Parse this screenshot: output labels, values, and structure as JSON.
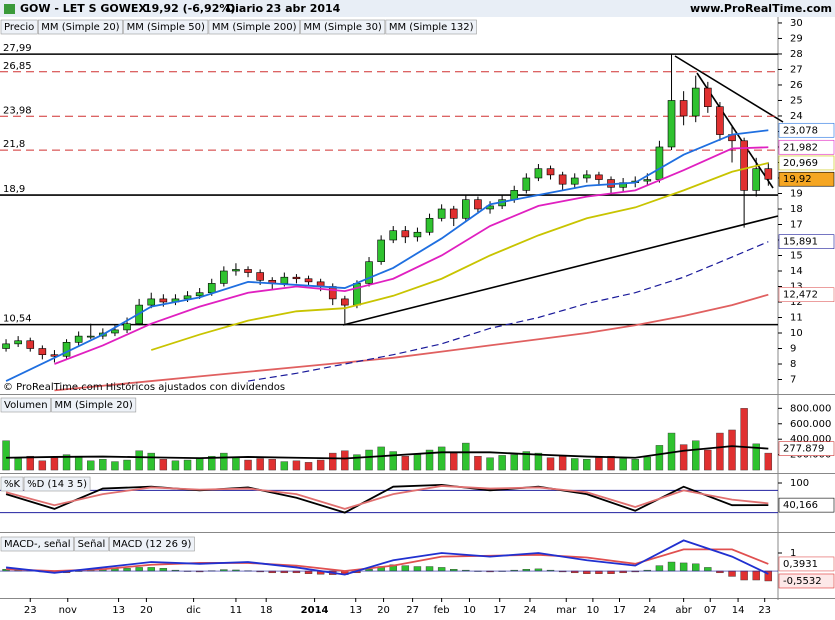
{
  "header": {
    "title": "GOW - LET S GOWEX",
    "quote": "19,92 (-6,92%)",
    "period": "Diario",
    "date": "23 abr 2014",
    "site": "www.ProRealTime.com"
  },
  "x_axis": {
    "xlim": [
      -0.5,
      63.8
    ],
    "xticks": [
      {
        "value": 2.0,
        "label": "23"
      },
      {
        "value": 5.1,
        "label": "nov"
      },
      {
        "value": 9.3,
        "label": "13"
      },
      {
        "value": 11.6,
        "label": "20"
      },
      {
        "value": 15.5,
        "label": "dic"
      },
      {
        "value": 19.0,
        "label": "11"
      },
      {
        "value": 21.5,
        "label": "18"
      },
      {
        "value": 25.5,
        "label": "2014"
      },
      {
        "value": 28.9,
        "label": "13"
      },
      {
        "value": 31.2,
        "label": "20"
      },
      {
        "value": 33.6,
        "label": "27"
      },
      {
        "value": 36.0,
        "label": "feb"
      },
      {
        "value": 38.3,
        "label": "10"
      },
      {
        "value": 40.8,
        "label": "17"
      },
      {
        "value": 43.3,
        "label": "24"
      },
      {
        "value": 46.3,
        "label": "mar"
      },
      {
        "value": 48.5,
        "label": "10"
      },
      {
        "value": 50.7,
        "label": "17"
      },
      {
        "value": 53.2,
        "label": "24"
      },
      {
        "value": 56.0,
        "label": "abr"
      },
      {
        "value": 58.2,
        "label": "07"
      },
      {
        "value": 60.5,
        "label": "14"
      },
      {
        "value": 62.7,
        "label": "23"
      }
    ]
  },
  "line_x": [
    0,
    4,
    8,
    12,
    16,
    20,
    24,
    28,
    32,
    36,
    40,
    44,
    48,
    52,
    56,
    60,
    63
  ],
  "chart_data": [
    {
      "type": "candlestick",
      "note": "© ProRealTime.com  Históricos ajustados con dividendos",
      "ylim": [
        6.13,
        30.32
      ],
      "yticks": [
        7,
        8,
        9,
        10,
        11,
        12,
        13,
        14,
        15,
        16,
        17,
        18,
        19,
        20,
        21,
        22,
        23,
        24,
        25,
        26,
        27,
        28,
        29,
        30
      ],
      "levels": [
        {
          "value": 27.99,
          "label": "27,99",
          "color": "#000000",
          "style": "solid"
        },
        {
          "value": 26.85,
          "label": "26,85",
          "color": "#d03030",
          "style": "dashed"
        },
        {
          "value": 23.98,
          "label": "23,98",
          "color": "#d03030",
          "style": "dashed"
        },
        {
          "value": 21.8,
          "label": "21,8",
          "color": "#d03030",
          "style": "dashed"
        },
        {
          "value": 18.9,
          "label": "18,9",
          "color": "#000000",
          "style": "solid"
        },
        {
          "value": 10.54,
          "label": "10,54",
          "color": "#000000",
          "style": "solid"
        }
      ],
      "ohlc": {
        "name": "Precio",
        "up_color": "#2fc22f",
        "down_color": "#e03030",
        "label_bg": "#f5a623",
        "last_label": "19,92",
        "open": [
          9.0,
          9.3,
          9.5,
          9.0,
          8.6,
          8.5,
          9.4,
          9.8,
          9.8,
          10.0,
          10.2,
          10.6,
          11.8,
          12.2,
          12.0,
          12.2,
          12.4,
          12.6,
          13.2,
          14.0,
          14.1,
          13.9,
          13.4,
          13.2,
          13.6,
          13.5,
          13.3,
          13.0,
          12.2,
          11.8,
          13.2,
          14.6,
          16.0,
          16.6,
          16.2,
          16.5,
          17.4,
          18.0,
          17.4,
          18.6,
          18.0,
          18.2,
          18.6,
          19.2,
          20.0,
          20.6,
          20.2,
          19.6,
          20.0,
          20.2,
          19.9,
          19.4,
          19.7,
          19.8,
          19.9,
          22.0,
          25.0,
          24.0,
          25.8,
          24.6,
          22.8,
          22.4,
          19.2,
          20.6
        ],
        "high": [
          9.6,
          9.8,
          9.7,
          9.2,
          8.9,
          9.6,
          10.1,
          10.6,
          10.3,
          10.5,
          11.0,
          12.2,
          12.6,
          12.5,
          12.5,
          12.7,
          12.9,
          13.5,
          14.3,
          14.5,
          14.3,
          14.1,
          13.6,
          13.9,
          13.8,
          13.7,
          13.5,
          13.2,
          12.4,
          13.4,
          14.9,
          16.3,
          16.9,
          16.9,
          16.8,
          17.7,
          18.3,
          18.2,
          18.9,
          18.8,
          18.5,
          18.9,
          19.5,
          20.3,
          20.9,
          20.8,
          20.4,
          20.3,
          20.5,
          20.4,
          20.1,
          20.0,
          20.1,
          20.3,
          22.4,
          27.99,
          25.6,
          26.6,
          26.2,
          24.9,
          23.4,
          22.6,
          21.3,
          21.0
        ],
        "low": [
          8.8,
          9.1,
          8.8,
          8.3,
          8.1,
          8.3,
          9.2,
          9.6,
          9.6,
          9.8,
          10.0,
          10.5,
          11.6,
          11.7,
          11.8,
          12.0,
          12.2,
          12.4,
          13.0,
          13.7,
          13.6,
          13.1,
          12.8,
          13.0,
          13.2,
          13.0,
          12.7,
          11.8,
          10.6,
          11.6,
          13.0,
          14.4,
          15.8,
          15.8,
          15.9,
          16.3,
          17.2,
          16.9,
          17.2,
          17.7,
          17.7,
          18.0,
          18.4,
          19.0,
          19.8,
          19.9,
          19.2,
          19.3,
          19.7,
          19.5,
          18.9,
          19.1,
          19.4,
          19.5,
          19.7,
          21.8,
          23.4,
          23.6,
          24.2,
          22.4,
          21.0,
          16.8,
          18.8,
          19.5
        ],
        "close": [
          9.3,
          9.5,
          9.0,
          8.6,
          8.5,
          9.4,
          9.8,
          9.8,
          10.0,
          10.2,
          10.6,
          11.8,
          12.2,
          12.0,
          12.2,
          12.4,
          12.6,
          13.2,
          14.0,
          14.1,
          13.9,
          13.4,
          13.2,
          13.6,
          13.5,
          13.3,
          13.0,
          12.2,
          11.8,
          13.2,
          14.6,
          16.0,
          16.6,
          16.2,
          16.5,
          17.4,
          18.0,
          17.4,
          18.6,
          18.0,
          18.2,
          18.6,
          19.2,
          20.0,
          20.6,
          20.2,
          19.6,
          20.0,
          20.2,
          19.9,
          19.4,
          19.7,
          19.8,
          19.9,
          22.0,
          25.0,
          24.0,
          25.8,
          24.6,
          22.8,
          22.4,
          19.2,
          20.6,
          19.92
        ]
      },
      "series": [
        {
          "name": "MM (Simple 20)",
          "color": "#1f6fe0",
          "last_label": "23,078",
          "values": [
            6.9,
            8.4,
            9.9,
            11.7,
            12.3,
            13.3,
            13.1,
            12.9,
            14.2,
            16.1,
            18.3,
            18.9,
            19.5,
            19.7,
            21.5,
            22.8,
            23.078
          ]
        },
        {
          "name": "MM (Simple 50)",
          "color": "#c8c400",
          "last_label": "20,969",
          "values": [
            null,
            null,
            null,
            8.9,
            9.9,
            10.8,
            11.4,
            11.6,
            12.4,
            13.5,
            15.0,
            16.3,
            17.4,
            18.1,
            19.2,
            20.4,
            20.969
          ]
        },
        {
          "name": "MM (Simple 200)",
          "color": "#e06060",
          "last_label": "12,472",
          "values": [
            null,
            6.3,
            6.6,
            6.9,
            7.2,
            7.5,
            7.8,
            8.1,
            8.4,
            8.8,
            9.2,
            9.6,
            10.0,
            10.5,
            11.1,
            11.8,
            12.472
          ]
        },
        {
          "name": "MM (Simple 30)",
          "color": "#e020c0",
          "last_label": "21,982",
          "values": [
            null,
            8.0,
            9.2,
            10.6,
            11.7,
            12.6,
            13.0,
            12.7,
            13.5,
            15.0,
            16.9,
            18.2,
            18.8,
            19.2,
            20.5,
            21.9,
            21.982
          ]
        },
        {
          "name": "MM (Simple 132)",
          "color": "#1a1a9a",
          "dashed": true,
          "last_label": "15,891",
          "values": [
            null,
            null,
            null,
            null,
            null,
            6.9,
            7.4,
            8.0,
            8.6,
            9.3,
            10.3,
            11.0,
            11.9,
            12.6,
            13.6,
            14.9,
            15.891
          ]
        }
      ]
    },
    {
      "type": "volume",
      "ylim": [
        -25000,
        960000
      ],
      "yticks": [
        {
          "value": 200000,
          "label": "200.000"
        },
        {
          "value": 400000,
          "label": "400.000"
        },
        {
          "value": 600000,
          "label": "600.000"
        },
        {
          "value": 800000,
          "label": "800.000"
        }
      ],
      "bars": {
        "name": "Volumen",
        "up_color": "#2fc22f",
        "down_color": "#e03030",
        "values": [
          380000,
          150000,
          180000,
          120000,
          160000,
          200000,
          180000,
          120000,
          140000,
          110000,
          130000,
          250000,
          220000,
          140000,
          120000,
          130000,
          150000,
          180000,
          220000,
          160000,
          130000,
          150000,
          140000,
          110000,
          120000,
          100000,
          130000,
          220000,
          250000,
          200000,
          260000,
          300000,
          240000,
          180000,
          200000,
          260000,
          300000,
          220000,
          350000,
          180000,
          160000,
          190000,
          200000,
          240000,
          220000,
          160000,
          180000,
          150000,
          140000,
          160000,
          180000,
          150000,
          140000,
          170000,
          320000,
          480000,
          330000,
          380000,
          260000,
          480000,
          520000,
          800000,
          340000,
          220000
        ]
      },
      "series": [
        {
          "name": "MM (Simple 20)",
          "color": "#000000",
          "label_color": "#d03030",
          "last_label": "277.879",
          "values": [
            160000,
            170000,
            175000,
            165000,
            155000,
            170000,
            160000,
            150000,
            190000,
            230000,
            230000,
            200000,
            175000,
            160000,
            250000,
            310000,
            277879
          ]
        }
      ]
    },
    {
      "type": "line",
      "ylim": [
        0,
        121.6
      ],
      "yticks": [
        100
      ],
      "ref_levels": [
        20,
        80
      ],
      "ref_color": "#2020a0",
      "series": [
        {
          "name": "%K",
          "color": "#000000",
          "last_label": "40,166",
          "values": [
            70,
            30,
            85,
            90,
            80,
            88,
            60,
            20,
            90,
            95,
            80,
            90,
            70,
            25,
            90,
            40,
            40.166
          ]
        },
        {
          "name": "%D (14 3 5)",
          "color": "#e07070",
          "values": [
            75,
            40,
            70,
            88,
            82,
            85,
            70,
            30,
            70,
            92,
            85,
            88,
            75,
            35,
            80,
            55,
            45
          ]
        }
      ]
    },
    {
      "type": "macd",
      "ylim": [
        -1.22,
        2.0
      ],
      "yticks": [
        1
      ],
      "bars": {
        "name": "MACD-, señal",
        "up_color": "#2fc22f",
        "down_color": "#e03030",
        "last_label": "-0,5532",
        "values": [
          0.1,
          0.1,
          0.05,
          -0.05,
          -0.1,
          -0.1,
          0.0,
          0.05,
          0.1,
          0.12,
          0.15,
          0.2,
          0.2,
          0.15,
          0.05,
          -0.02,
          -0.05,
          0.02,
          0.08,
          0.06,
          0.02,
          -0.05,
          -0.1,
          -0.1,
          -0.1,
          -0.15,
          -0.18,
          -0.2,
          -0.2,
          -0.1,
          0.1,
          0.25,
          0.35,
          0.3,
          0.25,
          0.25,
          0.2,
          0.1,
          0.05,
          0.0,
          -0.05,
          0.0,
          0.05,
          0.1,
          0.12,
          0.05,
          -0.05,
          -0.1,
          -0.15,
          -0.15,
          -0.15,
          -0.1,
          -0.05,
          0.05,
          0.3,
          0.5,
          0.45,
          0.4,
          0.2,
          -0.1,
          -0.3,
          -0.5,
          -0.5,
          -0.5532
        ]
      },
      "series": [
        {
          "name": "Señal",
          "color": "#e05050",
          "last_label": "0,3931",
          "values": [
            0.1,
            0.0,
            0.1,
            0.35,
            0.45,
            0.45,
            0.3,
            0.0,
            0.3,
            0.8,
            0.85,
            0.9,
            0.75,
            0.4,
            1.2,
            1.2,
            0.3931
          ]
        },
        {
          "name": "MACD (12 26 9)",
          "color": "#2030d0",
          "values": [
            0.2,
            -0.1,
            0.2,
            0.5,
            0.4,
            0.5,
            0.2,
            -0.2,
            0.6,
            1.0,
            0.8,
            1.0,
            0.6,
            0.3,
            1.7,
            0.8,
            -0.16
          ]
        }
      ]
    }
  ]
}
